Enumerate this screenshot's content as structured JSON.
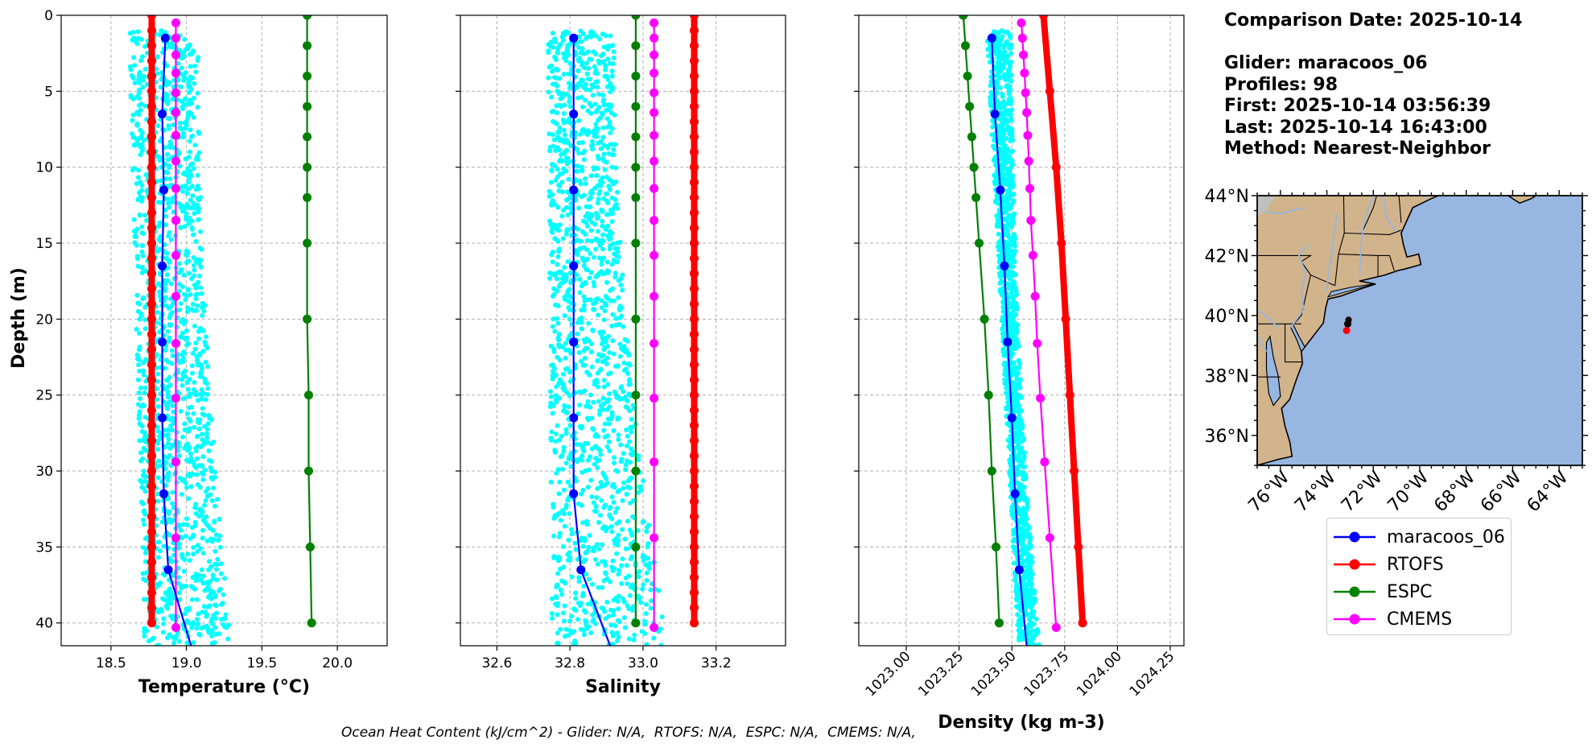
{
  "info": {
    "date_line": "Comparison Date: 2025-10-14",
    "glider_line": "Glider: maracoos_06",
    "profiles_line": "Profiles: 98",
    "first_line": "First: 2025-10-14 03:56:39",
    "last_line": "Last: 2025-10-14 16:43:00",
    "method_line": "Method: Nearest-Neighbor"
  },
  "footer": "Ocean Heat Content (kJ/cm^2) - Glider: N/A,  RTOFS: N/A,  ESPC: N/A,  CMEMS: N/A,",
  "colors": {
    "glider": "#0000ff",
    "rtofs": "#ff0000",
    "espc": "#008000",
    "cmems": "#ff00ff",
    "scatter": "#00ffff",
    "land": "#d2b48c",
    "ocean": "#97b6e1"
  },
  "legend": [
    {
      "name": "maracoos_06",
      "color": "#0000ff"
    },
    {
      "name": "RTOFS",
      "color": "#ff0000"
    },
    {
      "name": "ESPC",
      "color": "#008000"
    },
    {
      "name": "CMEMS",
      "color": "#ff00ff"
    }
  ],
  "chart_data": [
    {
      "type": "line",
      "xlabel": "Temperature (°C)",
      "ylabel": "Depth (m)",
      "xlim": [
        18.17,
        20.33
      ],
      "ylim": [
        41.5,
        0
      ],
      "xticks": [
        18.5,
        19.0,
        19.5,
        20.0
      ],
      "xtick_labels": [
        "18.5",
        "19.0",
        "19.5",
        "20.0"
      ],
      "yticks": [
        0,
        5,
        10,
        15,
        20,
        25,
        30,
        35,
        40
      ],
      "grid": true,
      "scatter_range": {
        "min_left": 18.62,
        "max_left": 19.08,
        "min_right": 18.72,
        "max_right": 19.3,
        "depth": [
          1,
          41.5
        ]
      },
      "series": [
        {
          "name": "maracoos_06",
          "depth": [
            1.5,
            6.5,
            11.5,
            16.5,
            21.5,
            26.5,
            31.5,
            36.5,
            41.5
          ],
          "values": [
            18.86,
            18.84,
            18.85,
            18.84,
            18.84,
            18.84,
            18.85,
            18.88,
            19.03
          ]
        },
        {
          "name": "RTOFS",
          "depth": [
            0,
            1,
            2,
            3,
            4,
            5,
            6,
            7,
            8,
            9,
            10,
            11,
            12,
            13,
            14,
            15,
            16,
            17,
            18,
            19,
            20,
            21,
            22,
            23,
            24,
            25,
            26,
            27,
            28,
            29,
            30,
            31,
            32,
            33,
            34,
            35,
            36,
            37,
            38,
            39,
            40
          ],
          "values": [
            18.77,
            18.77,
            18.77,
            18.77,
            18.77,
            18.77,
            18.77,
            18.77,
            18.77,
            18.77,
            18.77,
            18.77,
            18.77,
            18.77,
            18.77,
            18.77,
            18.77,
            18.77,
            18.77,
            18.77,
            18.77,
            18.77,
            18.77,
            18.77,
            18.77,
            18.77,
            18.77,
            18.77,
            18.77,
            18.77,
            18.77,
            18.77,
            18.77,
            18.77,
            18.77,
            18.77,
            18.77,
            18.77,
            18.77,
            18.77,
            18.77
          ]
        },
        {
          "name": "ESPC",
          "depth": [
            0,
            2,
            4,
            6,
            8,
            10,
            12,
            15,
            20,
            25,
            30,
            35,
            40
          ],
          "values": [
            19.8,
            19.8,
            19.8,
            19.8,
            19.8,
            19.8,
            19.8,
            19.8,
            19.8,
            19.81,
            19.81,
            19.82,
            19.83
          ]
        },
        {
          "name": "CMEMS",
          "depth": [
            0.5,
            1.5,
            2.6,
            3.8,
            5.1,
            6.4,
            7.9,
            9.6,
            11.4,
            13.5,
            15.8,
            18.5,
            21.6,
            25.2,
            29.4,
            34.4,
            40.3
          ],
          "values": [
            18.93,
            18.93,
            18.93,
            18.93,
            18.93,
            18.93,
            18.93,
            18.93,
            18.93,
            18.93,
            18.93,
            18.93,
            18.93,
            18.93,
            18.93,
            18.93,
            18.93
          ]
        }
      ]
    },
    {
      "type": "line",
      "xlabel": "Salinity",
      "xlim": [
        32.5,
        33.39
      ],
      "ylim": [
        41.5,
        0
      ],
      "xticks": [
        32.6,
        32.8,
        33.0,
        33.2
      ],
      "xtick_labels": [
        "32.6",
        "32.8",
        "33.0",
        "33.2"
      ],
      "yticks": [
        0,
        5,
        10,
        15,
        20,
        25,
        30,
        35,
        40
      ],
      "grid": true,
      "scatter_range": {
        "min_left": 32.74,
        "max_left": 32.92,
        "min_right": 32.75,
        "max_right": 33.07,
        "depth": [
          1,
          41.5
        ]
      },
      "series": [
        {
          "name": "maracoos_06",
          "depth": [
            1.5,
            6.5,
            11.5,
            16.5,
            21.5,
            26.5,
            31.5,
            36.5,
            41.5
          ],
          "values": [
            32.81,
            32.81,
            32.81,
            32.81,
            32.81,
            32.81,
            32.81,
            32.83,
            32.91
          ]
        },
        {
          "name": "RTOFS",
          "depth": [
            0,
            1,
            2,
            3,
            4,
            5,
            6,
            7,
            8,
            9,
            10,
            11,
            12,
            13,
            14,
            15,
            16,
            17,
            18,
            19,
            20,
            21,
            22,
            23,
            24,
            25,
            26,
            27,
            28,
            29,
            30,
            31,
            32,
            33,
            34,
            35,
            36,
            37,
            38,
            39,
            40
          ],
          "values": [
            33.14,
            33.14,
            33.14,
            33.14,
            33.14,
            33.14,
            33.14,
            33.14,
            33.14,
            33.14,
            33.14,
            33.14,
            33.14,
            33.14,
            33.14,
            33.14,
            33.14,
            33.14,
            33.14,
            33.14,
            33.14,
            33.14,
            33.14,
            33.14,
            33.14,
            33.14,
            33.14,
            33.14,
            33.14,
            33.14,
            33.14,
            33.14,
            33.14,
            33.14,
            33.14,
            33.14,
            33.14,
            33.14,
            33.14,
            33.14,
            33.14
          ]
        },
        {
          "name": "ESPC",
          "depth": [
            0,
            2,
            4,
            6,
            8,
            10,
            12,
            15,
            20,
            25,
            30,
            35,
            40
          ],
          "values": [
            32.98,
            32.98,
            32.98,
            32.98,
            32.98,
            32.98,
            32.98,
            32.98,
            32.98,
            32.98,
            32.98,
            32.98,
            32.98
          ]
        },
        {
          "name": "CMEMS",
          "depth": [
            0.5,
            1.5,
            2.6,
            3.8,
            5.1,
            6.4,
            7.9,
            9.6,
            11.4,
            13.5,
            15.8,
            18.5,
            21.6,
            25.2,
            29.4,
            34.4,
            40.3
          ],
          "values": [
            33.03,
            33.03,
            33.03,
            33.03,
            33.03,
            33.03,
            33.03,
            33.03,
            33.03,
            33.03,
            33.03,
            33.03,
            33.03,
            33.03,
            33.03,
            33.03,
            33.03
          ]
        }
      ]
    },
    {
      "type": "line",
      "xlabel": "Density (kg m-3)",
      "xlim": [
        1022.775,
        1024.315
      ],
      "ylim": [
        41.5,
        0
      ],
      "xticks": [
        1023.0,
        1023.25,
        1023.5,
        1023.75,
        1024.0,
        1024.25
      ],
      "xtick_labels": [
        "1023.00",
        "1023.25",
        "1023.50",
        "1023.75",
        "1024.00",
        "1024.25"
      ],
      "yticks": [
        0,
        5,
        10,
        15,
        20,
        25,
        30,
        35,
        40
      ],
      "grid": true,
      "scatter_range": {
        "min_left": 1023.38,
        "max_left": 1023.5,
        "min_right": 1023.53,
        "max_right": 1023.63,
        "depth": [
          1,
          41.5
        ]
      },
      "series": [
        {
          "name": "maracoos_06",
          "depth": [
            1.5,
            6.5,
            11.5,
            16.5,
            21.5,
            26.5,
            31.5,
            36.5,
            41.5
          ],
          "values": [
            1023.405,
            1023.42,
            1023.445,
            1023.465,
            1023.48,
            1023.5,
            1023.515,
            1023.535,
            1023.57
          ]
        },
        {
          "name": "RTOFS",
          "depth": [
            0,
            5,
            10,
            15,
            20,
            25,
            30,
            35,
            40
          ],
          "values": [
            1023.65,
            1023.68,
            1023.71,
            1023.735,
            1023.755,
            1023.775,
            1023.795,
            1023.815,
            1023.835
          ]
        },
        {
          "name": "ESPC",
          "depth": [
            0,
            2,
            4,
            6,
            8,
            10,
            12,
            15,
            20,
            25,
            30,
            35,
            40
          ],
          "values": [
            1023.27,
            1023.28,
            1023.29,
            1023.3,
            1023.31,
            1023.32,
            1023.33,
            1023.345,
            1023.37,
            1023.39,
            1023.405,
            1023.425,
            1023.44
          ]
        },
        {
          "name": "CMEMS",
          "depth": [
            0.5,
            1.5,
            2.6,
            3.8,
            5.1,
            6.4,
            7.9,
            9.6,
            11.4,
            13.5,
            15.8,
            18.5,
            21.6,
            25.2,
            29.4,
            34.4,
            40.3
          ],
          "values": [
            1023.545,
            1023.55,
            1023.555,
            1023.56,
            1023.565,
            1023.57,
            1023.575,
            1023.58,
            1023.585,
            1023.59,
            1023.6,
            1023.61,
            1023.62,
            1023.635,
            1023.655,
            1023.68,
            1023.71
          ]
        }
      ]
    }
  ],
  "map": {
    "lon_range": [
      -77,
      -63
    ],
    "lat_range": [
      35,
      44
    ],
    "lon_ticks": [
      -76,
      -74,
      -72,
      -70,
      -68,
      -66,
      -64
    ],
    "lon_tick_labels": [
      "76°W",
      "74°W",
      "72°W",
      "70°W",
      "68°W",
      "66°W",
      "64°W"
    ],
    "lat_ticks": [
      36,
      38,
      40,
      42,
      44
    ],
    "lat_tick_labels": [
      "36°N",
      "38°N",
      "40°N",
      "42°N",
      "44°N"
    ],
    "glider_position": {
      "lon": -73.1,
      "lat": 39.72
    },
    "model_position": {
      "lon": -73.15,
      "lat": 39.5
    }
  }
}
